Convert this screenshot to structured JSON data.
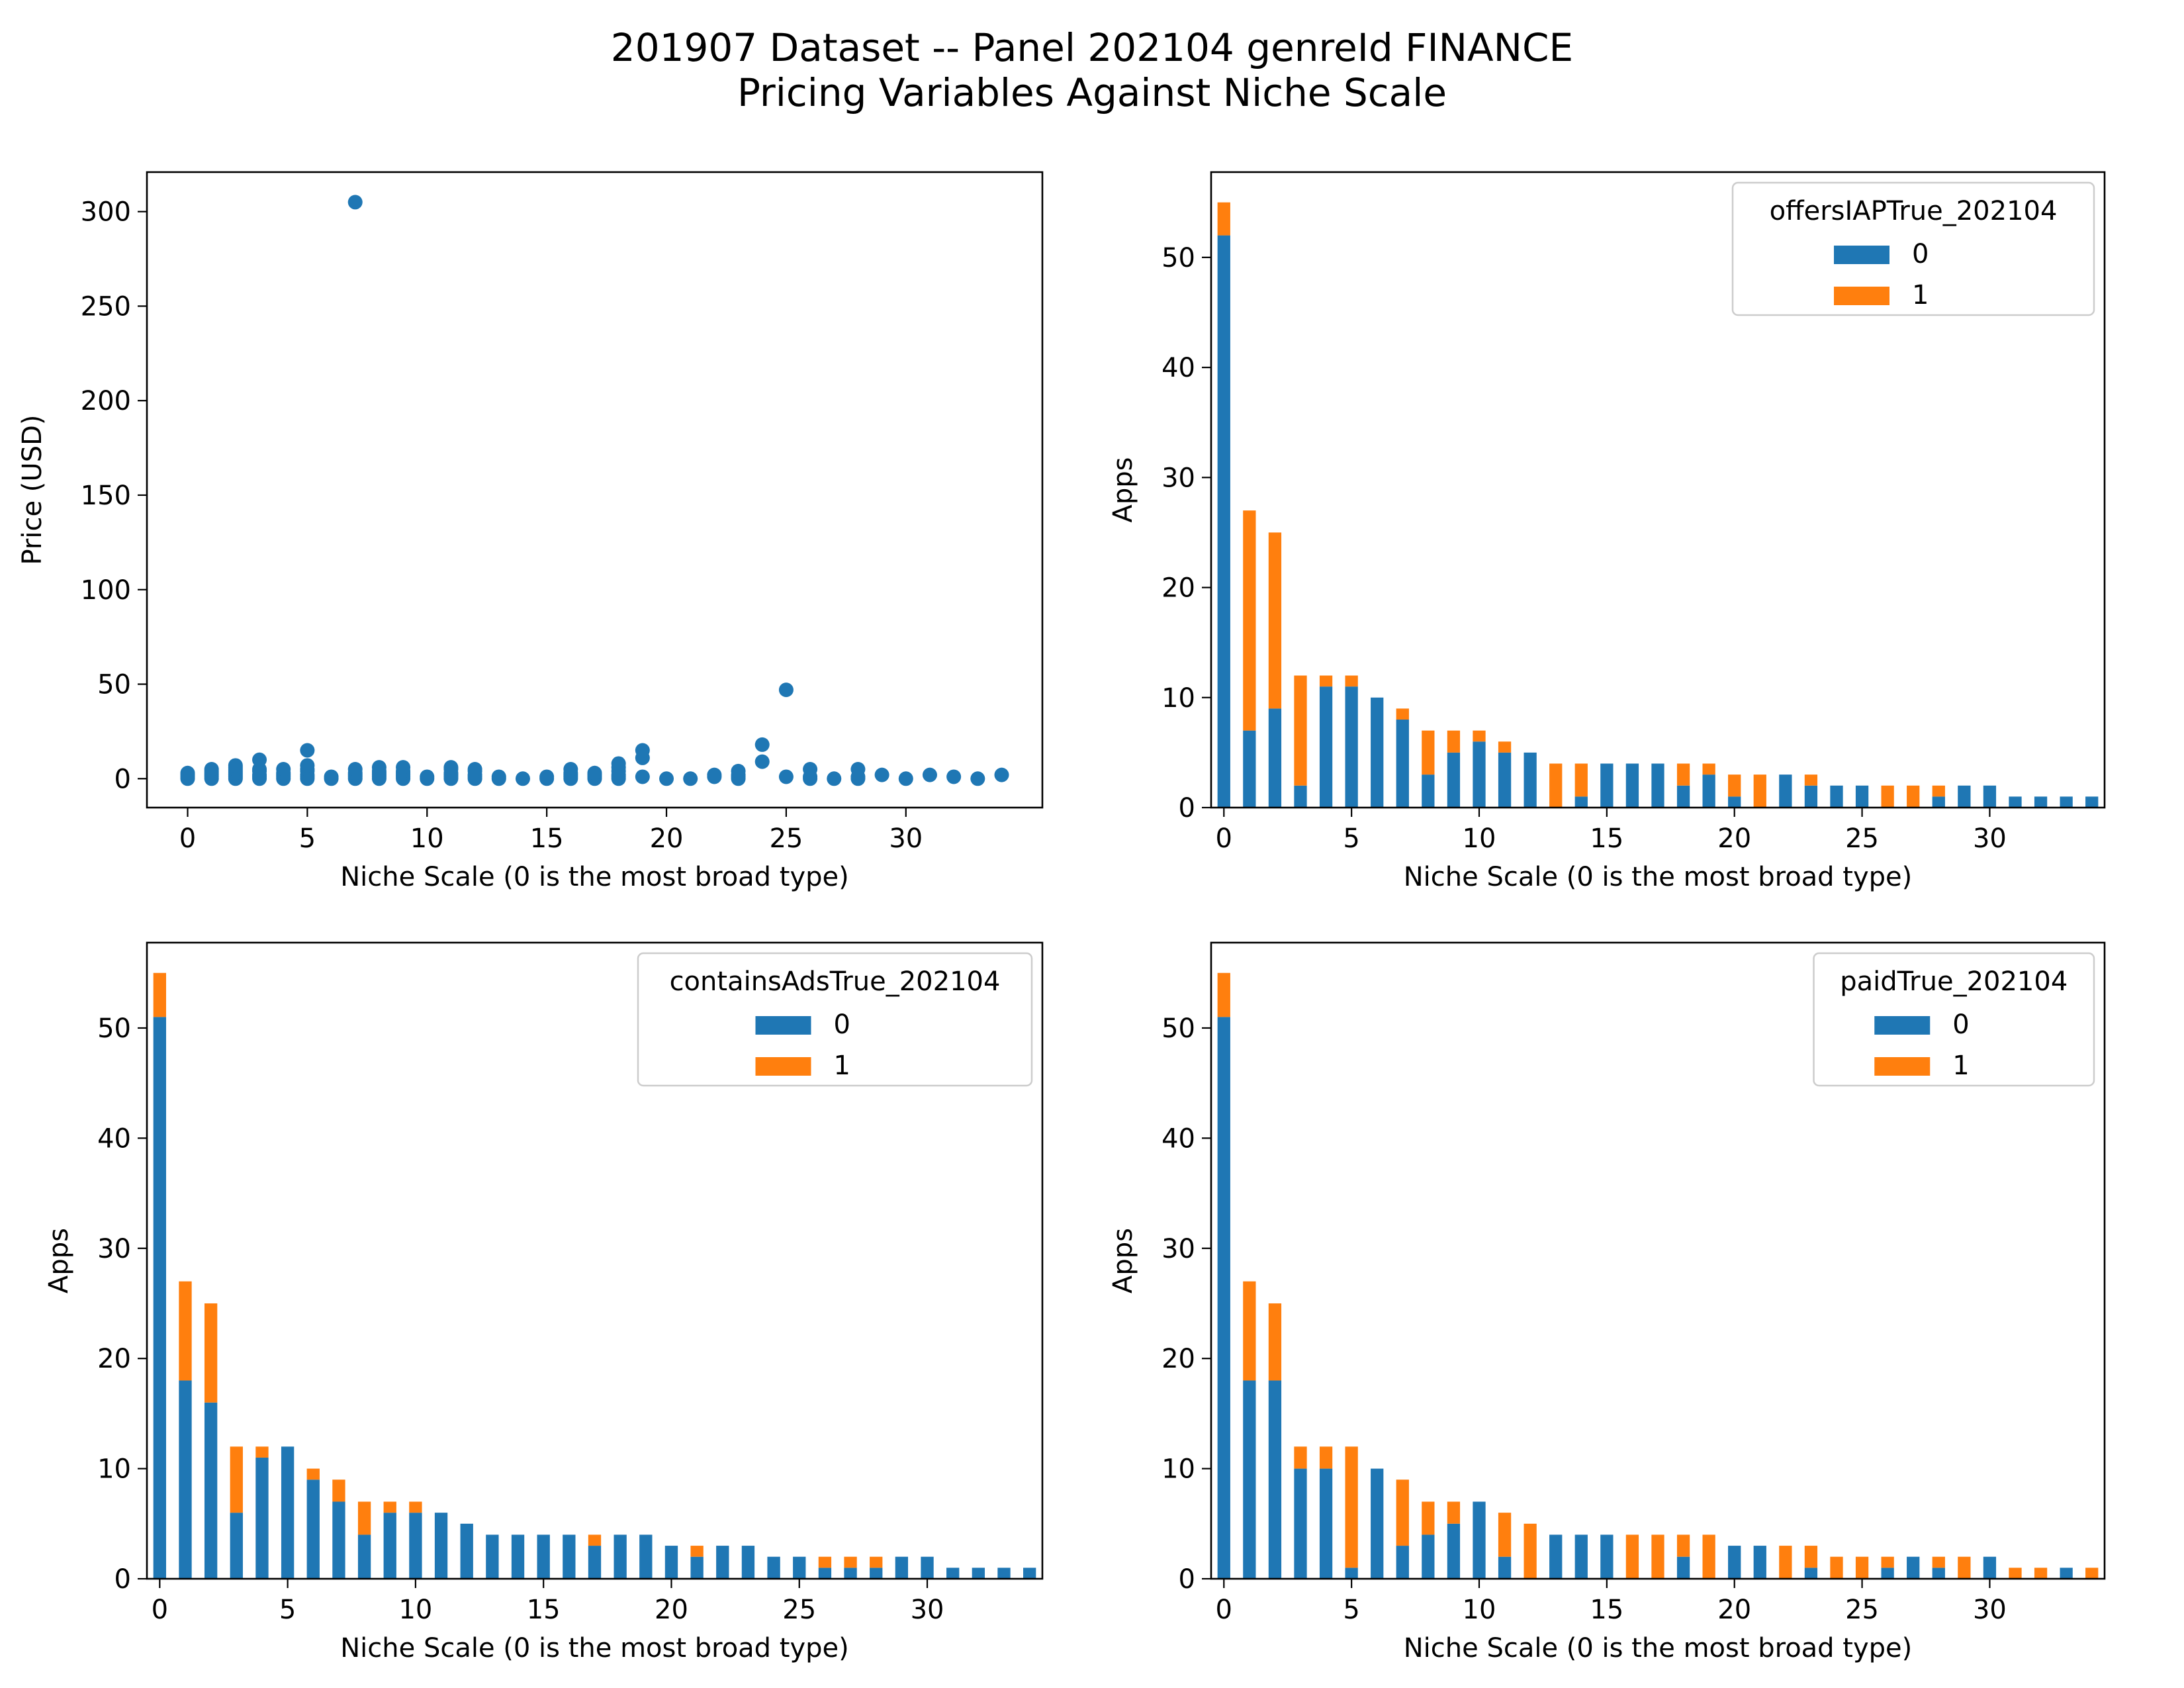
{
  "title_line1": "201907 Dataset -- Panel 202104 genreId FINANCE",
  "title_line2": "Pricing Variables Against Niche Scale",
  "colors": {
    "series0": "#1f77b4",
    "series1": "#ff7f0e"
  },
  "chart_data": [
    {
      "type": "scatter",
      "xlabel": "Niche Scale (0 is the most broad type)",
      "ylabel": "Price (USD)",
      "xlim": [
        -1.7,
        35.7
      ],
      "ylim": [
        -15.3,
        320.9
      ],
      "xticks": [
        0,
        5,
        10,
        15,
        20,
        25,
        30
      ],
      "yticks": [
        0,
        50,
        100,
        150,
        200,
        250,
        300
      ],
      "points": [
        [
          0,
          0
        ],
        [
          0,
          1
        ],
        [
          0,
          2
        ],
        [
          0,
          3
        ],
        [
          1,
          0
        ],
        [
          1,
          1
        ],
        [
          1,
          2
        ],
        [
          1,
          3
        ],
        [
          1,
          4
        ],
        [
          1,
          5
        ],
        [
          2,
          0
        ],
        [
          2,
          1
        ],
        [
          2,
          2
        ],
        [
          2,
          3
        ],
        [
          2,
          4
        ],
        [
          2,
          5
        ],
        [
          2,
          6
        ],
        [
          2,
          7
        ],
        [
          3,
          0
        ],
        [
          3,
          1
        ],
        [
          3,
          2
        ],
        [
          3,
          4
        ],
        [
          3,
          5
        ],
        [
          3,
          10
        ],
        [
          4,
          0
        ],
        [
          4,
          1
        ],
        [
          4,
          2
        ],
        [
          4,
          3
        ],
        [
          4,
          5
        ],
        [
          5,
          0
        ],
        [
          5,
          1
        ],
        [
          5,
          2
        ],
        [
          5,
          4
        ],
        [
          5,
          5
        ],
        [
          5,
          7
        ],
        [
          5,
          15
        ],
        [
          6,
          0
        ],
        [
          6,
          1
        ],
        [
          7,
          0
        ],
        [
          7,
          1
        ],
        [
          7,
          2
        ],
        [
          7,
          3
        ],
        [
          7,
          5
        ],
        [
          7,
          305
        ],
        [
          8,
          0
        ],
        [
          8,
          1
        ],
        [
          8,
          2
        ],
        [
          8,
          3
        ],
        [
          8,
          4
        ],
        [
          8,
          6
        ],
        [
          9,
          0
        ],
        [
          9,
          1
        ],
        [
          9,
          2
        ],
        [
          9,
          3
        ],
        [
          9,
          4
        ],
        [
          9,
          6
        ],
        [
          10,
          0
        ],
        [
          10,
          1
        ],
        [
          11,
          0
        ],
        [
          11,
          1
        ],
        [
          11,
          2
        ],
        [
          11,
          3
        ],
        [
          11,
          5
        ],
        [
          11,
          6
        ],
        [
          12,
          0
        ],
        [
          12,
          1
        ],
        [
          12,
          2
        ],
        [
          12,
          4
        ],
        [
          12,
          5
        ],
        [
          13,
          0
        ],
        [
          13,
          1
        ],
        [
          14,
          0
        ],
        [
          15,
          0
        ],
        [
          15,
          1
        ],
        [
          16,
          0
        ],
        [
          16,
          1
        ],
        [
          16,
          2
        ],
        [
          16,
          3
        ],
        [
          16,
          5
        ],
        [
          17,
          0
        ],
        [
          17,
          1
        ],
        [
          17,
          2
        ],
        [
          17,
          3
        ],
        [
          18,
          0
        ],
        [
          18,
          1
        ],
        [
          18,
          2
        ],
        [
          18,
          4
        ],
        [
          18,
          6
        ],
        [
          18,
          8
        ],
        [
          19,
          1
        ],
        [
          19,
          11
        ],
        [
          19,
          15
        ],
        [
          20,
          0
        ],
        [
          21,
          0
        ],
        [
          22,
          1
        ],
        [
          22,
          2
        ],
        [
          23,
          0
        ],
        [
          23,
          1
        ],
        [
          23,
          2
        ],
        [
          23,
          4
        ],
        [
          24,
          9
        ],
        [
          24,
          18
        ],
        [
          25,
          1
        ],
        [
          25,
          47
        ],
        [
          26,
          0
        ],
        [
          26,
          1
        ],
        [
          26,
          5
        ],
        [
          27,
          0
        ],
        [
          28,
          0
        ],
        [
          28,
          1
        ],
        [
          28,
          5
        ],
        [
          29,
          2
        ],
        [
          30,
          0
        ],
        [
          31,
          2
        ],
        [
          32,
          1
        ],
        [
          33,
          0
        ],
        [
          34,
          2
        ]
      ]
    },
    {
      "type": "bar",
      "stacked": true,
      "ylabel": "Apps",
      "xlabel": "Niche Scale (0 is the most broad type)",
      "legend_title": "offersIAPTrue_202104",
      "legend_labels": [
        "0",
        "1"
      ],
      "legend_position": "upper right",
      "xticks": [
        0,
        5,
        10,
        15,
        20,
        25,
        30
      ],
      "yticks": [
        0,
        10,
        20,
        30,
        40,
        50
      ],
      "ylim": [
        0,
        57.75
      ],
      "categories": [
        0,
        1,
        2,
        3,
        4,
        5,
        6,
        7,
        8,
        9,
        10,
        11,
        12,
        13,
        14,
        15,
        16,
        17,
        18,
        19,
        20,
        21,
        22,
        23,
        24,
        25,
        26,
        27,
        28,
        29,
        30,
        31,
        32,
        33,
        34
      ],
      "series": [
        {
          "name": "0",
          "values": [
            52,
            7,
            9,
            2,
            11,
            11,
            10,
            8,
            3,
            5,
            6,
            5,
            5,
            0,
            1,
            4,
            4,
            4,
            2,
            3,
            1,
            0,
            3,
            2,
            2,
            2,
            0,
            0,
            1,
            2,
            2,
            1,
            1,
            1,
            1
          ]
        },
        {
          "name": "1",
          "values": [
            3,
            20,
            16,
            10,
            1,
            1,
            0,
            1,
            4,
            2,
            1,
            1,
            0,
            4,
            3,
            0,
            0,
            0,
            2,
            1,
            2,
            3,
            0,
            1,
            0,
            0,
            2,
            2,
            1,
            0,
            0,
            0,
            0,
            0,
            0
          ]
        }
      ]
    },
    {
      "type": "bar",
      "stacked": true,
      "ylabel": "Apps",
      "xlabel": "Niche Scale (0 is the most broad type)",
      "legend_title": "containsAdsTrue_202104",
      "legend_labels": [
        "0",
        "1"
      ],
      "legend_position": "upper right",
      "xticks": [
        0,
        5,
        10,
        15,
        20,
        25,
        30
      ],
      "yticks": [
        0,
        10,
        20,
        30,
        40,
        50
      ],
      "ylim": [
        0,
        57.75
      ],
      "categories": [
        0,
        1,
        2,
        3,
        4,
        5,
        6,
        7,
        8,
        9,
        10,
        11,
        12,
        13,
        14,
        15,
        16,
        17,
        18,
        19,
        20,
        21,
        22,
        23,
        24,
        25,
        26,
        27,
        28,
        29,
        30,
        31,
        32,
        33,
        34
      ],
      "series": [
        {
          "name": "0",
          "values": [
            51,
            18,
            16,
            6,
            11,
            12,
            9,
            7,
            4,
            6,
            6,
            6,
            5,
            4,
            4,
            4,
            4,
            3,
            4,
            4,
            3,
            2,
            3,
            3,
            2,
            2,
            1,
            1,
            1,
            2,
            2,
            1,
            1,
            1,
            1
          ]
        },
        {
          "name": "1",
          "values": [
            4,
            9,
            9,
            6,
            1,
            0,
            1,
            2,
            3,
            1,
            1,
            0,
            0,
            0,
            0,
            0,
            0,
            1,
            0,
            0,
            0,
            1,
            0,
            0,
            0,
            0,
            1,
            1,
            1,
            0,
            0,
            0,
            0,
            0,
            0
          ]
        }
      ]
    },
    {
      "type": "bar",
      "stacked": true,
      "ylabel": "Apps",
      "xlabel": "Niche Scale (0 is the most broad type)",
      "legend_title": "paidTrue_202104",
      "legend_labels": [
        "0",
        "1"
      ],
      "legend_position": "upper right",
      "xticks": [
        0,
        5,
        10,
        15,
        20,
        25,
        30
      ],
      "yticks": [
        0,
        10,
        20,
        30,
        40,
        50
      ],
      "ylim": [
        0,
        57.75
      ],
      "categories": [
        0,
        1,
        2,
        3,
        4,
        5,
        6,
        7,
        8,
        9,
        10,
        11,
        12,
        13,
        14,
        15,
        16,
        17,
        18,
        19,
        20,
        21,
        22,
        23,
        24,
        25,
        26,
        27,
        28,
        29,
        30,
        31,
        32,
        33,
        34
      ],
      "series": [
        {
          "name": "0",
          "values": [
            51,
            18,
            18,
            10,
            10,
            1,
            10,
            3,
            4,
            5,
            7,
            2,
            0,
            4,
            4,
            4,
            0,
            0,
            2,
            0,
            3,
            3,
            0,
            1,
            0,
            0,
            1,
            2,
            1,
            0,
            2,
            0,
            0,
            1,
            0
          ]
        },
        {
          "name": "1",
          "values": [
            4,
            9,
            7,
            2,
            2,
            11,
            0,
            6,
            3,
            2,
            0,
            4,
            5,
            0,
            0,
            0,
            4,
            4,
            2,
            4,
            0,
            0,
            3,
            2,
            2,
            2,
            1,
            0,
            1,
            2,
            0,
            1,
            1,
            0,
            1
          ]
        }
      ]
    }
  ]
}
